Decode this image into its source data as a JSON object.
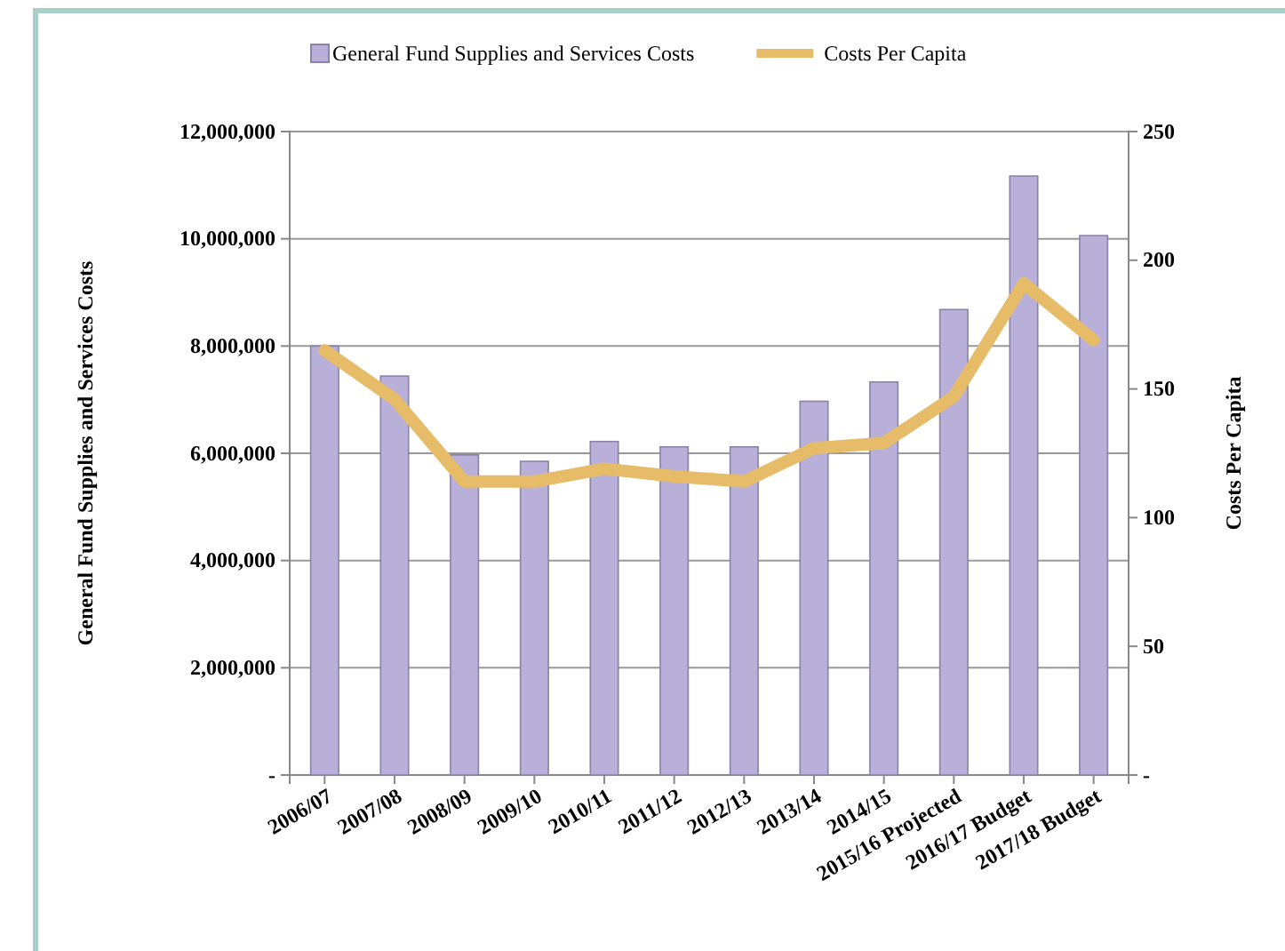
{
  "chart_data": {
    "type": "bar",
    "categories": [
      "2006/07",
      "2007/08",
      "2008/09",
      "2009/10",
      "2010/11",
      "2011/12",
      "2012/13",
      "2013/14",
      "2014/15",
      "2015/16 Projected",
      "2016/17 Budget",
      "2017/18 Budget"
    ],
    "series": [
      {
        "name": "General Fund Supplies and Services Costs",
        "color": "#b9b0d9",
        "values": [
          8000000,
          7440000,
          5970000,
          5850000,
          6220000,
          6120000,
          6120000,
          6970000,
          7330000,
          8680000,
          11170000,
          10060000
        ]
      },
      {
        "name": "Costs Per Capita",
        "type": "line",
        "axis": "y2",
        "color": "#e6bc68",
        "values": [
          165,
          146,
          114,
          114,
          119,
          116,
          114,
          127,
          129,
          147,
          191,
          169
        ]
      }
    ],
    "ylabel": "General Fund Supplies and Services Costs",
    "y2label": "Costs Per Capita",
    "ylim": [
      0,
      12000000
    ],
    "yticks": [
      {
        "value": 0,
        "label": "-"
      },
      {
        "value": 2000000,
        "label": "2,000,000"
      },
      {
        "value": 4000000,
        "label": "4,000,000"
      },
      {
        "value": 6000000,
        "label": "6,000,000"
      },
      {
        "value": 8000000,
        "label": "8,000,000"
      },
      {
        "value": 10000000,
        "label": "10,000,000"
      },
      {
        "value": 12000000,
        "label": "12,000,000"
      }
    ],
    "y2lim": [
      0,
      250
    ],
    "y2ticks": [
      {
        "value": 0,
        "label": "-"
      },
      50,
      100,
      150,
      200,
      250
    ],
    "grid": "y",
    "legend": "top",
    "line_style": "solid",
    "marker": "none"
  }
}
